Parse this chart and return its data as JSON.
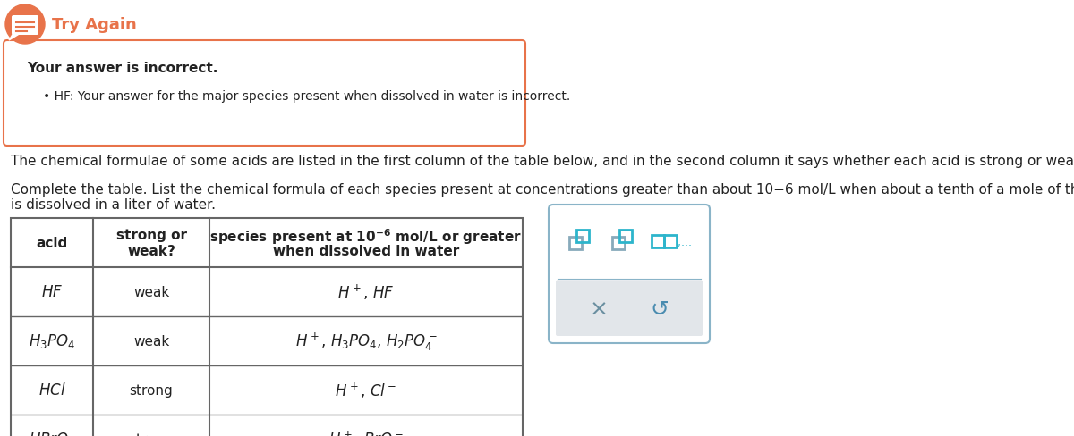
{
  "bg_color": "#ffffff",
  "try_again_color": "#e8734a",
  "try_again_text": "Try Again",
  "incorrect_text": "Your answer is incorrect.",
  "bullet_text": "HF: Your answer for the major species present when dissolved in water is incorrect.",
  "para1": "The chemical formulae of some acids are listed in the first column of the table below, and in the second column it says whether each acid is strong or weak.",
  "para2": "Complete the table. List the chemical formula of each species present at concentrations greater than about 10−6 mol/L when about a tenth of a mole of the acid\nis dissolved in a liter of water.",
  "table_strengths": [
    "weak",
    "weak",
    "strong",
    "strong"
  ],
  "table_border_color": "#666666",
  "text_color": "#222222",
  "panel_bg": "#e2e6ea",
  "panel_border": "#8ab4c8",
  "teal_color": "#2db5cc",
  "teal_dark": "#1a8faa",
  "gray_icon": "#88aabb",
  "x_color": "#6a8fa0",
  "refresh_color": "#4a8cb0"
}
